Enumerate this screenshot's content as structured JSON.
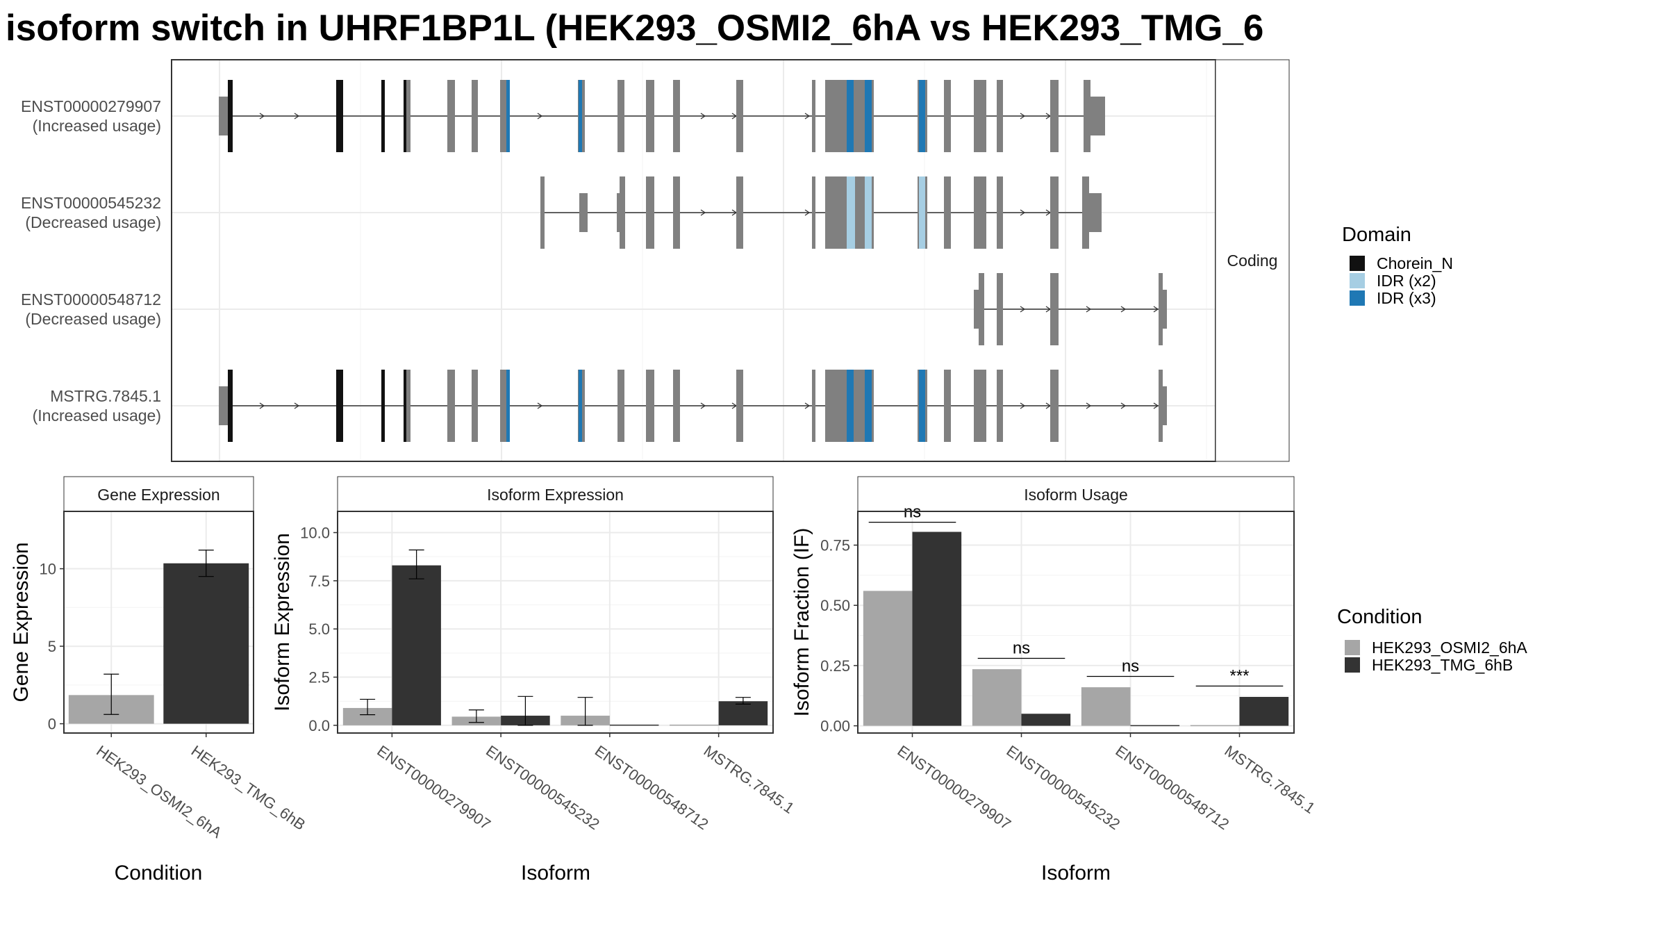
{
  "title": "isoform switch in UHRF1BP1L (HEK293_OSMI2_6hA vs HEK293_TMG_6",
  "colors": {
    "exon": "#808080",
    "chorein": "#111111",
    "idr2": "#a6cee3",
    "idr3": "#1f78b4",
    "cond_a": "#a6a6a6",
    "cond_b": "#333333",
    "grid": "#ebebeb",
    "panel_border": "#333333"
  },
  "structure_panel": {
    "strip_label": "Coding",
    "isoforms": [
      {
        "id": "ENST00000279907",
        "usage": "(Increased usage)"
      },
      {
        "id": "ENST00000545232",
        "usage": "(Decreased usage)"
      },
      {
        "id": "ENST00000548712",
        "usage": "(Decreased usage)"
      },
      {
        "id": "MSTRG.7845.1",
        "usage": "(Increased usage)"
      }
    ]
  },
  "domain_legend": {
    "title": "Domain",
    "items": [
      {
        "label": "Chorein_N",
        "color": "#111111"
      },
      {
        "label": "IDR (x2)",
        "color": "#a6cee3"
      },
      {
        "label": "IDR (x3)",
        "color": "#1f78b4"
      }
    ]
  },
  "condition_legend": {
    "title": "Condition",
    "items": [
      {
        "label": "HEK293_OSMI2_6hA",
        "color": "#a6a6a6"
      },
      {
        "label": "HEK293_TMG_6hB",
        "color": "#333333"
      }
    ]
  },
  "chart_data": [
    {
      "type": "bar",
      "title": "Gene Expression",
      "xlabel": "Condition",
      "ylabel": "Gene Expression",
      "categories": [
        "HEK293_OSMI2_6hA",
        "HEK293_TMG_6hB"
      ],
      "values": [
        1.85,
        10.35
      ],
      "error": [
        [
          0.6,
          3.2
        ],
        [
          9.5,
          11.2
        ]
      ],
      "ylim": [
        -0.6,
        13.7
      ],
      "yticks": [
        0,
        5,
        10
      ],
      "grid": true
    },
    {
      "type": "bar",
      "title": "Isoform Expression",
      "xlabel": "Isoform",
      "ylabel": "Isoform Expression",
      "categories": [
        "ENST00000279907",
        "ENST00000545232",
        "ENST00000548712",
        "MSTRG.7845.1"
      ],
      "series": [
        {
          "name": "HEK293_OSMI2_6hA",
          "values": [
            0.9,
            0.45,
            0.5,
            0.0
          ],
          "error": [
            [
              0.55,
              1.35
            ],
            [
              0.15,
              0.8
            ],
            [
              0.0,
              1.45
            ],
            [
              0.0,
              0.0
            ]
          ]
        },
        {
          "name": "HEK293_TMG_6hB",
          "values": [
            8.3,
            0.5,
            0.0,
            1.25
          ],
          "error": [
            [
              7.6,
              9.1
            ],
            [
              0.0,
              1.5
            ],
            [
              0.0,
              0.0
            ],
            [
              1.1,
              1.45
            ]
          ]
        }
      ],
      "ylim": [
        -0.4,
        11.1
      ],
      "yticks": [
        "0.0",
        "2.5",
        "5.0",
        "7.5",
        "10.0"
      ],
      "grid": true
    },
    {
      "type": "bar",
      "title": "Isoform Usage",
      "xlabel": "Isoform",
      "ylabel": "Isoform Fraction (IF)",
      "categories": [
        "ENST00000279907",
        "ENST00000545232",
        "ENST00000548712",
        "MSTRG.7845.1"
      ],
      "series": [
        {
          "name": "HEK293_OSMI2_6hA",
          "values": [
            0.56,
            0.235,
            0.16,
            0.0
          ]
        },
        {
          "name": "HEK293_TMG_6hB",
          "values": [
            0.805,
            0.05,
            0.0,
            0.12
          ]
        }
      ],
      "significance": [
        "ns",
        "ns",
        "ns",
        "***"
      ],
      "sig_levels": [
        0.845,
        0.28,
        0.205,
        0.165
      ],
      "ylim": [
        -0.03,
        0.89
      ],
      "yticks": [
        "0.00",
        "0.25",
        "0.50",
        "0.75"
      ],
      "grid": true
    }
  ]
}
